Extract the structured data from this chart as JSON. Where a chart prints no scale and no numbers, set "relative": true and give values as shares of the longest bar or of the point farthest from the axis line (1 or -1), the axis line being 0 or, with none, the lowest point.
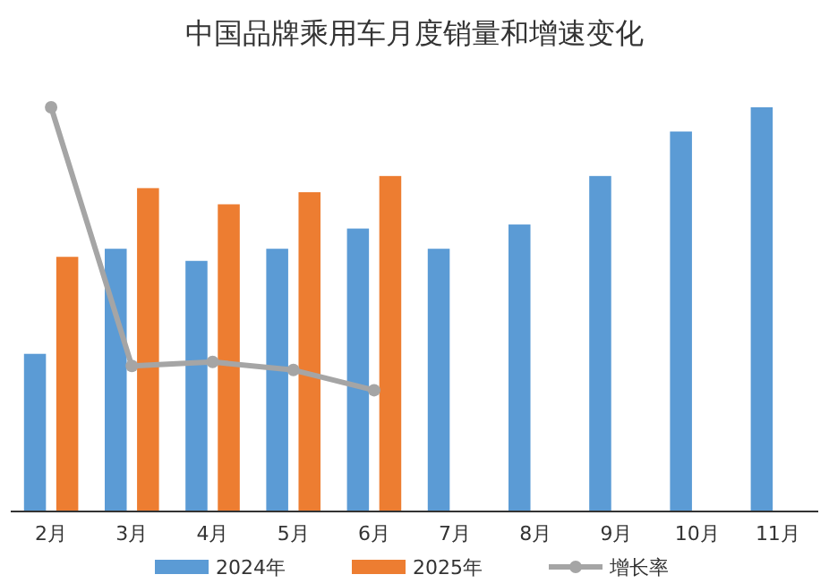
{
  "chart_data": {
    "type": "bar",
    "title": "中国品牌乘用车月度销量和增速变化",
    "relative": true,
    "categories": [
      "2月",
      "3月",
      "4月",
      "5月",
      "6月",
      "7月",
      "8月",
      "9月",
      "10月",
      "11月"
    ],
    "series": [
      {
        "name": "2024年",
        "color": "#5b9bd5",
        "values": [
          0.39,
          0.65,
          0.62,
          0.65,
          0.7,
          0.65,
          0.71,
          0.83,
          0.94,
          1
        ]
      },
      {
        "name": "2025年",
        "color": "#ed7d31",
        "values": [
          0.63,
          0.8,
          0.76,
          0.79,
          0.83,
          null,
          null,
          null,
          null,
          null
        ]
      },
      {
        "name": "增长率",
        "type": "line",
        "color": "#a5a5a5",
        "marker": "circle",
        "values": [
          1,
          0.36,
          0.37,
          0.35,
          0.3,
          null,
          null,
          null,
          null,
          null
        ]
      }
    ],
    "legend": "bottom",
    "grid": false
  }
}
